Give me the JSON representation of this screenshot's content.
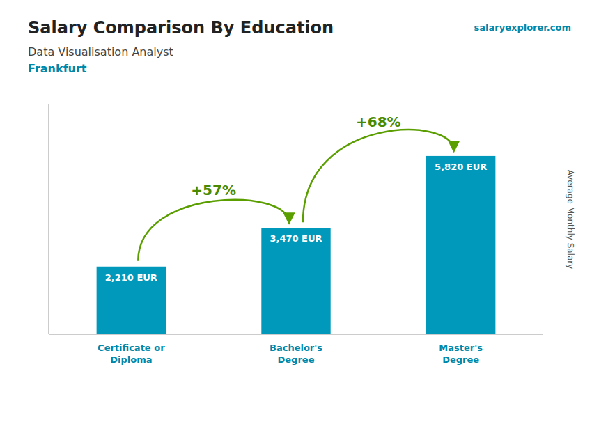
{
  "chart_data": {
    "type": "bar",
    "title": "Salary Comparison By Education",
    "subtitle": [
      "Data Visualisation Analyst",
      "Frankfurt"
    ],
    "source": "salaryexplorer.com",
    "ylabel": "Average Monthly Salary",
    "categories": [
      "Certificate or\nDiploma",
      "Bachelor's\nDegree",
      "Master's\nDegree"
    ],
    "values": [
      2210,
      3470,
      5820
    ],
    "value_labels": [
      "2,210 EUR",
      "3,470 EUR",
      "5,820 EUR"
    ],
    "data_labels": true,
    "annotations": [
      "+57%",
      "+68%"
    ],
    "color": "#0099bb",
    "ylim": [
      0,
      7500
    ],
    "tick_labels": "x",
    "grid": false
  }
}
